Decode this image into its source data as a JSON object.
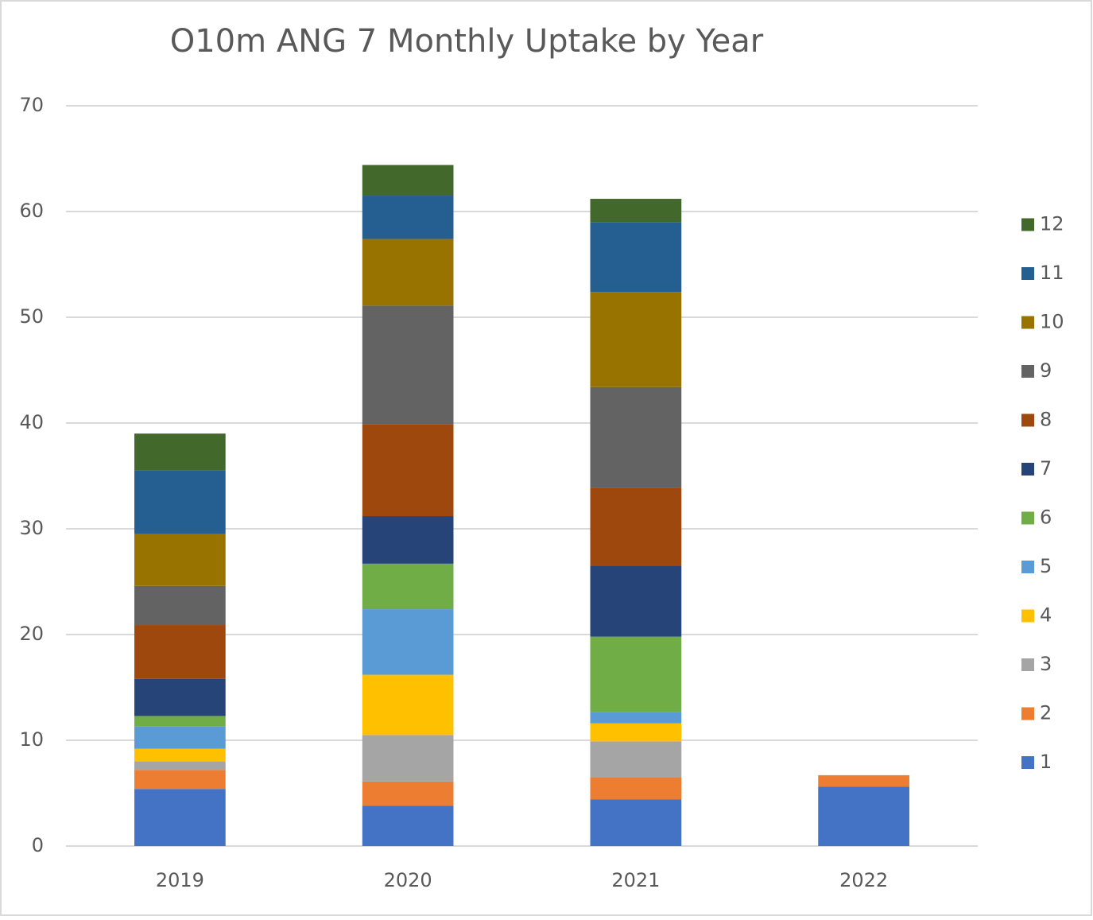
{
  "chart_data": {
    "type": "stacked_bar",
    "title": "O10m ANG 7 Monthly Uptake by Year",
    "categories": [
      "2019",
      "2020",
      "2021",
      "2022"
    ],
    "series": [
      {
        "name": "1",
        "color": "#4472c4",
        "values": [
          5.4,
          3.8,
          4.4,
          5.6
        ]
      },
      {
        "name": "2",
        "color": "#ed7d31",
        "values": [
          1.8,
          2.3,
          2.1,
          1.1
        ]
      },
      {
        "name": "3",
        "color": "#a5a5a5",
        "values": [
          0.8,
          4.4,
          3.4,
          null
        ]
      },
      {
        "name": "4",
        "color": "#ffc000",
        "values": [
          1.2,
          5.7,
          1.7,
          null
        ]
      },
      {
        "name": "5",
        "color": "#5b9bd5",
        "values": [
          2.1,
          6.2,
          1.1,
          null
        ]
      },
      {
        "name": "6",
        "color": "#70ad47",
        "values": [
          1.0,
          4.3,
          7.1,
          null
        ]
      },
      {
        "name": "7",
        "color": "#264478",
        "values": [
          3.5,
          4.5,
          6.7,
          null
        ]
      },
      {
        "name": "8",
        "color": "#9e480e",
        "values": [
          5.1,
          8.7,
          7.4,
          null
        ]
      },
      {
        "name": "9",
        "color": "#636363",
        "values": [
          3.7,
          11.2,
          9.5,
          null
        ]
      },
      {
        "name": "10",
        "color": "#997300",
        "values": [
          4.9,
          6.3,
          9.0,
          null
        ]
      },
      {
        "name": "11",
        "color": "#255e91",
        "values": [
          6.0,
          4.1,
          6.6,
          null
        ]
      },
      {
        "name": "12",
        "color": "#43682b",
        "values": [
          3.5,
          2.9,
          2.2,
          null
        ]
      }
    ],
    "ylim": [
      0,
      70
    ],
    "yticks": [
      0,
      10,
      20,
      30,
      40,
      50,
      60,
      70
    ],
    "grid": true,
    "legend": "right"
  }
}
